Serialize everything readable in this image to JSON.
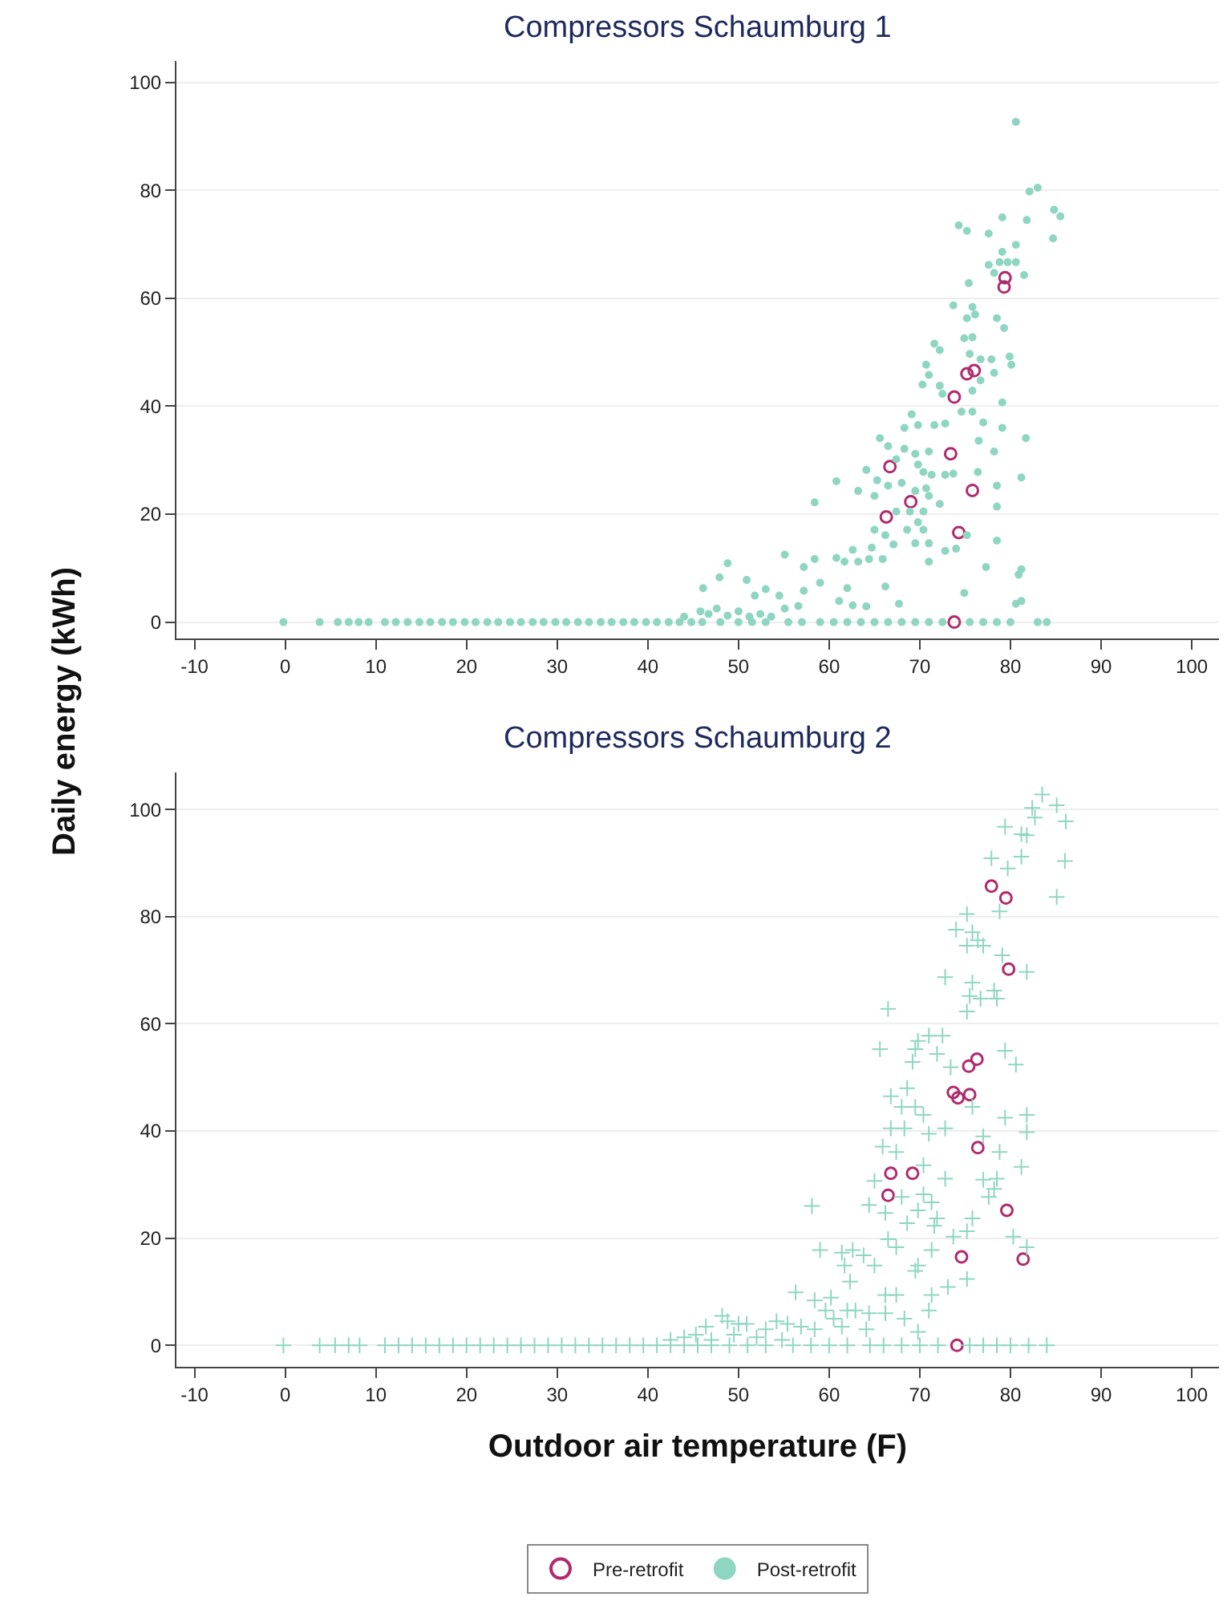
{
  "chart_data": [
    {
      "type": "scatter",
      "title": "Compressors Schaumburg 1",
      "ylabel": "Daily energy (kWh)",
      "xlim": [
        -12,
        103
      ],
      "ylim": [
        -3,
        104
      ],
      "xticks": [
        -10,
        0,
        10,
        20,
        30,
        40,
        50,
        60,
        70,
        80,
        90,
        100
      ],
      "yticks": [
        0,
        20,
        40,
        60,
        80,
        100
      ],
      "grid": "y",
      "legend": "bottom",
      "series": [
        {
          "name": "Pre-retrofit",
          "color": "#b02a6c",
          "marker": "circle",
          "x": [
            79.4,
            79.3,
            76.0,
            75.2,
            73.8,
            73.4,
            66.7,
            69.0,
            66.3,
            75.8,
            74.3,
            73.8
          ],
          "values": [
            63.8,
            62.1,
            46.6,
            46.0,
            41.7,
            31.2,
            28.8,
            22.3,
            19.5,
            24.4,
            16.6,
            0
          ]
        },
        {
          "name": "Post-retrofit",
          "color": "#8fd6c2",
          "marker": "circle",
          "x": [
            80.6,
            82.1,
            83.0,
            84.8,
            85.5,
            84.7,
            74.3,
            75.2,
            79.1,
            81.8,
            77.6,
            80.6,
            79.1,
            77.6,
            78.8,
            79.7,
            80.6,
            81.5,
            78.2,
            75.4,
            73.7,
            75.8,
            76.1,
            75.2,
            78.5,
            79.3,
            71.6,
            72.2,
            74.9,
            75.8,
            75.5,
            76.7,
            77.9,
            79.9,
            80.1,
            70.7,
            71.0,
            70.3,
            72.2,
            72.5,
            75.8,
            76.7,
            78.2,
            79.1,
            69.1,
            69.8,
            68.3,
            71.6,
            72.8,
            74.6,
            75.8,
            77.0,
            78.2,
            79.1,
            76.5,
            81.7,
            65.6,
            66.5,
            68.3,
            69.5,
            71.0,
            67.4,
            69.8,
            64.1,
            65.3,
            66.5,
            68.0,
            70.4,
            71.3,
            72.8,
            73.7,
            76.4,
            69.5,
            70.7,
            71.0,
            78.5,
            81.2,
            60.8,
            63.2,
            65.0,
            67.4,
            68.9,
            69.8,
            70.4,
            65.0,
            66.2,
            68.6,
            70.4,
            78.5,
            72.2,
            58.4,
            48.8,
            55.1,
            57.2,
            58.4,
            60.8,
            61.7,
            63.2,
            64.4,
            65.9,
            62.6,
            64.7,
            67.1,
            69.5,
            71.0,
            72.8,
            74.0,
            75.2,
            71.0,
            78.5,
            77.3,
            80.9,
            81.2,
            46.1,
            47.9,
            50.9,
            53.0,
            54.5,
            51.8,
            55.1,
            56.6,
            57.2,
            59.0,
            62.0,
            61.1,
            62.6,
            64.1,
            66.2,
            67.7,
            74.9,
            81.2,
            80.6,
            44.0,
            45.8,
            46.7,
            47.6,
            48.8,
            50.0,
            51.2,
            52.4,
            53.6,
            -0.2,
            3.8,
            5.8,
            7.0,
            8.1,
            9.2,
            11.0,
            12.2,
            13.5,
            14.8,
            16.0,
            17.3,
            18.5,
            19.8,
            21.0,
            22.3,
            23.5,
            24.8,
            26.0,
            27.3,
            28.5,
            29.8,
            31.0,
            32.3,
            33.5,
            34.8,
            36.0,
            37.3,
            38.5,
            39.8,
            41.0,
            42.3,
            43.5,
            44.8,
            46.0,
            48.0,
            50.0,
            51.5,
            53.0,
            55.5,
            57.0,
            59.0,
            60.5,
            62.0,
            63.5,
            65.0,
            66.5,
            68.0,
            69.5,
            71.0,
            72.5,
            75.5,
            77.0,
            78.5,
            80.0,
            83.0,
            84.0
          ],
          "values": [
            92.7,
            79.8,
            80.5,
            76.4,
            75.2,
            71.1,
            73.5,
            72.5,
            75.0,
            74.5,
            72.0,
            69.9,
            68.6,
            66.2,
            66.7,
            66.7,
            66.7,
            64.3,
            64.7,
            62.8,
            58.7,
            58.4,
            57.0,
            56.3,
            56.3,
            54.5,
            51.6,
            50.4,
            52.6,
            52.8,
            49.7,
            48.7,
            48.7,
            49.2,
            47.7,
            47.7,
            45.8,
            44.0,
            43.8,
            42.3,
            42.9,
            44.8,
            46.2,
            40.7,
            38.5,
            36.5,
            36.0,
            36.5,
            36.8,
            39.0,
            39.0,
            37.0,
            31.6,
            36.0,
            33.6,
            34.1,
            34.1,
            32.6,
            32.1,
            31.2,
            31.6,
            30.2,
            29.2,
            28.2,
            26.3,
            25.3,
            25.8,
            27.8,
            27.3,
            27.3,
            27.5,
            27.8,
            24.3,
            24.8,
            23.4,
            25.3,
            26.8,
            26.1,
            24.3,
            23.4,
            20.5,
            20.5,
            18.5,
            20.5,
            17.1,
            16.1,
            17.1,
            17.1,
            21.4,
            21.9,
            22.2,
            10.9,
            12.5,
            10.2,
            11.7,
            11.9,
            11.2,
            11.2,
            11.7,
            11.7,
            13.4,
            13.8,
            14.4,
            14.6,
            14.6,
            13.2,
            13.6,
            16.1,
            11.2,
            15.1,
            10.2,
            8.8,
            9.8,
            6.3,
            8.3,
            7.8,
            6.1,
            4.9,
            4.9,
            2.5,
            3.0,
            5.8,
            7.3,
            6.3,
            3.9,
            3.1,
            2.9,
            6.6,
            3.4,
            5.4,
            3.9,
            3.4,
            1.0,
            2.0,
            1.5,
            2.5,
            1.2,
            2.0,
            1.0,
            1.5,
            1.0,
            0,
            0,
            0,
            0,
            0,
            0,
            0,
            0,
            0,
            0,
            0,
            0,
            0,
            0,
            0,
            0,
            0,
            0,
            0,
            0,
            0,
            0,
            0,
            0,
            0,
            0,
            0,
            0,
            0,
            0,
            0,
            0,
            0,
            0,
            0,
            0,
            0,
            0,
            0,
            0,
            0,
            0,
            0,
            0,
            0,
            0,
            0,
            0,
            0,
            0,
            0,
            0,
            0,
            0,
            0,
            0,
            0
          ]
        }
      ]
    },
    {
      "type": "scatter",
      "title": "Compressors Schaumburg 2",
      "xlabel": "Outdoor air temperature (F)",
      "xlim": [
        -12,
        103
      ],
      "ylim": [
        -4,
        107
      ],
      "xticks": [
        -10,
        0,
        10,
        20,
        30,
        40,
        50,
        60,
        70,
        80,
        90,
        100
      ],
      "yticks": [
        0,
        20,
        40,
        60,
        80,
        100
      ],
      "grid": "y",
      "legend": "bottom",
      "series": [
        {
          "name": "Pre-retrofit",
          "color": "#b02a6c",
          "marker": "circle",
          "x": [
            77.9,
            79.5,
            79.8,
            75.4,
            76.3,
            73.7,
            74.2,
            75.5,
            76.4,
            66.8,
            69.2,
            66.5,
            79.6,
            74.6,
            81.4,
            74.1
          ],
          "values": [
            85.7,
            83.5,
            70.2,
            52.1,
            53.4,
            47.2,
            46.2,
            46.8,
            36.9,
            32.1,
            32.1,
            28.0,
            25.2,
            16.5,
            16.1,
            0
          ]
        },
        {
          "name": "Post-retrofit",
          "color": "#8fd6c2",
          "marker": "cross",
          "x": [
            83.5,
            85.1,
            82.4,
            82.7,
            86.1,
            79.4,
            81.2,
            81.8,
            77.9,
            81.2,
            79.7,
            86.0,
            85.1,
            78.8,
            75.2,
            74.0,
            75.8,
            76.4,
            75.2,
            77.0,
            79.1,
            81.8,
            72.8,
            75.8,
            78.2,
            75.5,
            76.7,
            78.5,
            75.2,
            66.5,
            71.0,
            72.5,
            69.8,
            65.6,
            69.5,
            71.9,
            79.4,
            80.6,
            69.2,
            73.4,
            68.6,
            66.8,
            68.0,
            69.5,
            70.4,
            75.8,
            79.4,
            81.8,
            66.8,
            68.3,
            71.0,
            72.8,
            77.0,
            81.8,
            65.9,
            67.4,
            78.8,
            70.4,
            72.8,
            77.0,
            78.5,
            81.2,
            65.0,
            70.4,
            71.3,
            68.0,
            78.2,
            77.6,
            64.4,
            66.2,
            69.8,
            71.9,
            75.8,
            68.6,
            71.6,
            66.5,
            67.4,
            73.7,
            75.2,
            80.3,
            81.8,
            58.1,
            59.0,
            61.4,
            62.6,
            63.8,
            65.0,
            61.7,
            62.3,
            66.2,
            67.4,
            69.8,
            69.5,
            71.3,
            71.3,
            73.1,
            75.2,
            56.3,
            58.4,
            60.2,
            59.6,
            62.0,
            62.9,
            64.4,
            66.2,
            68.3,
            71.0,
            69.8,
            64.1,
            61.4,
            60.5,
            46.4,
            48.2,
            48.8,
            50.0,
            50.9,
            53.0,
            54.2,
            55.4,
            56.9,
            58.4,
            42.5,
            44.0,
            45.3,
            47.0,
            49.5,
            52.0,
            54.8,
            -0.2,
            3.8,
            5.5,
            7.0,
            8.2,
            11.0,
            12.5,
            14.0,
            15.5,
            17.0,
            18.5,
            20.0,
            21.5,
            23.0,
            24.5,
            26.0,
            27.5,
            29.0,
            30.5,
            32.0,
            33.5,
            35.0,
            36.5,
            38.0,
            39.5,
            41.0,
            42.5,
            44.0,
            45.5,
            47.0,
            49.0,
            51.0,
            53.0,
            56.0,
            58.0,
            60.0,
            62.0,
            64.5,
            66.0,
            68.0,
            70.0,
            72.0,
            75.5,
            77.0,
            78.5,
            80.0,
            82.0,
            84.0
          ],
          "values": [
            102.8,
            100.8,
            100.3,
            98.5,
            97.8,
            96.8,
            95.4,
            95.2,
            90.9,
            91.2,
            89.0,
            90.4,
            83.7,
            81.0,
            80.5,
            77.6,
            77.1,
            75.6,
            74.6,
            74.6,
            72.8,
            69.7,
            68.7,
            67.7,
            66.2,
            65.2,
            64.7,
            64.7,
            62.3,
            62.8,
            57.8,
            57.8,
            56.8,
            55.3,
            55.3,
            54.4,
            55.0,
            52.4,
            52.9,
            51.9,
            48.0,
            46.5,
            44.5,
            44.5,
            43.0,
            44.5,
            42.5,
            43.0,
            40.5,
            40.5,
            39.5,
            40.5,
            39.0,
            39.8,
            37.1,
            36.1,
            36.1,
            33.6,
            31.1,
            30.9,
            31.1,
            33.3,
            30.7,
            28.2,
            26.7,
            27.7,
            29.2,
            27.7,
            26.2,
            24.7,
            25.2,
            23.7,
            23.7,
            22.8,
            22.3,
            19.8,
            18.3,
            20.3,
            21.3,
            20.3,
            18.3,
            26.0,
            17.8,
            17.3,
            17.8,
            16.8,
            14.9,
            14.9,
            11.9,
            9.4,
            9.4,
            14.9,
            13.9,
            17.8,
            9.4,
            10.9,
            12.4,
            9.9,
            8.4,
            8.9,
            6.5,
            6.5,
            6.5,
            6.0,
            6.0,
            5.0,
            6.5,
            2.5,
            3.0,
            3.5,
            5.0,
            3.5,
            5.5,
            4.5,
            4.0,
            4.0,
            3.0,
            4.5,
            4.0,
            3.5,
            3.0,
            1.0,
            1.5,
            2.0,
            1.0,
            2.0,
            1.5,
            1.0,
            0,
            0,
            0,
            0,
            0,
            0,
            0,
            0,
            0,
            0,
            0,
            0,
            0,
            0,
            0,
            0,
            0,
            0,
            0,
            0,
            0,
            0,
            0,
            0,
            0,
            0,
            0,
            0,
            0,
            0,
            0,
            0,
            0,
            0,
            0,
            0,
            0,
            0,
            0,
            0,
            0,
            0,
            0,
            0,
            0,
            0,
            0,
            0
          ]
        }
      ]
    }
  ]
}
